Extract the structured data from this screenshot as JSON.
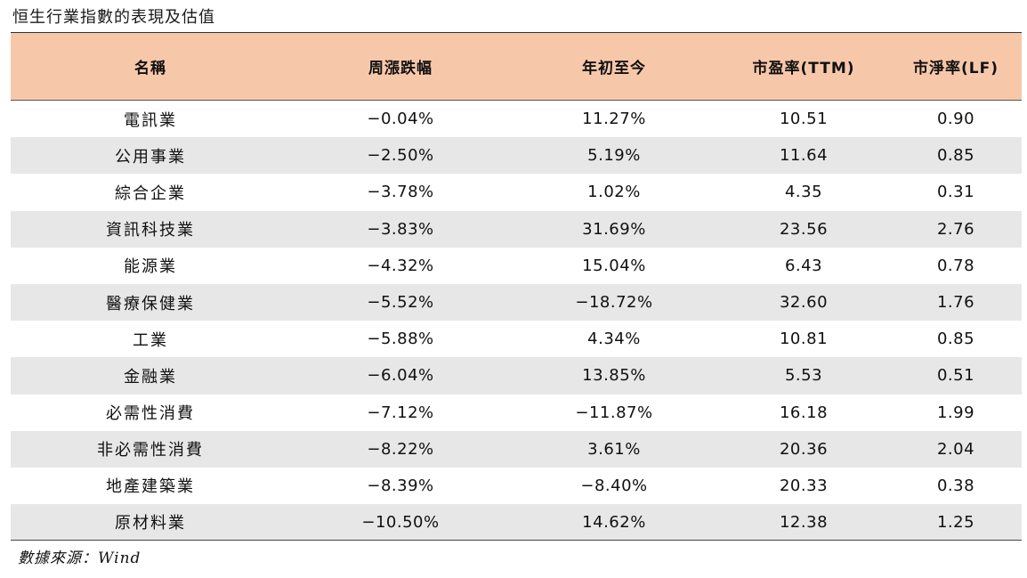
{
  "title": "恒生行業指數的表現及估值",
  "table": {
    "headers": [
      "名稱",
      "周漲跌幅",
      "年初至今",
      "市盈率(TTM)",
      "市淨率(LF)"
    ],
    "rows": [
      [
        "電訊業",
        "−0.04%",
        "11.27%",
        "10.51",
        "0.90"
      ],
      [
        "公用事業",
        "−2.50%",
        "5.19%",
        "11.64",
        "0.85"
      ],
      [
        "綜合企業",
        "−3.78%",
        "1.02%",
        "4.35",
        "0.31"
      ],
      [
        "資訊科技業",
        "−3.83%",
        "31.69%",
        "23.56",
        "2.76"
      ],
      [
        "能源業",
        "−4.32%",
        "15.04%",
        "6.43",
        "0.78"
      ],
      [
        "醫療保健業",
        "−5.52%",
        "−18.72%",
        "32.60",
        "1.76"
      ],
      [
        "工業",
        "−5.88%",
        "4.34%",
        "10.81",
        "0.85"
      ],
      [
        "金融業",
        "−6.04%",
        "13.85%",
        "5.53",
        "0.51"
      ],
      [
        "必需性消費",
        "−7.12%",
        "−11.87%",
        "16.18",
        "1.99"
      ],
      [
        "非必需性消費",
        "−8.22%",
        "3.61%",
        "20.36",
        "2.04"
      ],
      [
        "地產建築業",
        "−8.39%",
        "−8.40%",
        "20.33",
        "0.38"
      ],
      [
        "原材料業",
        "−10.50%",
        "14.62%",
        "12.38",
        "1.25"
      ]
    ]
  },
  "source": "數據來源：Wind",
  "colors": {
    "header_bg": "#f6c8a9",
    "stripe_bg": "#e7e7e7"
  }
}
